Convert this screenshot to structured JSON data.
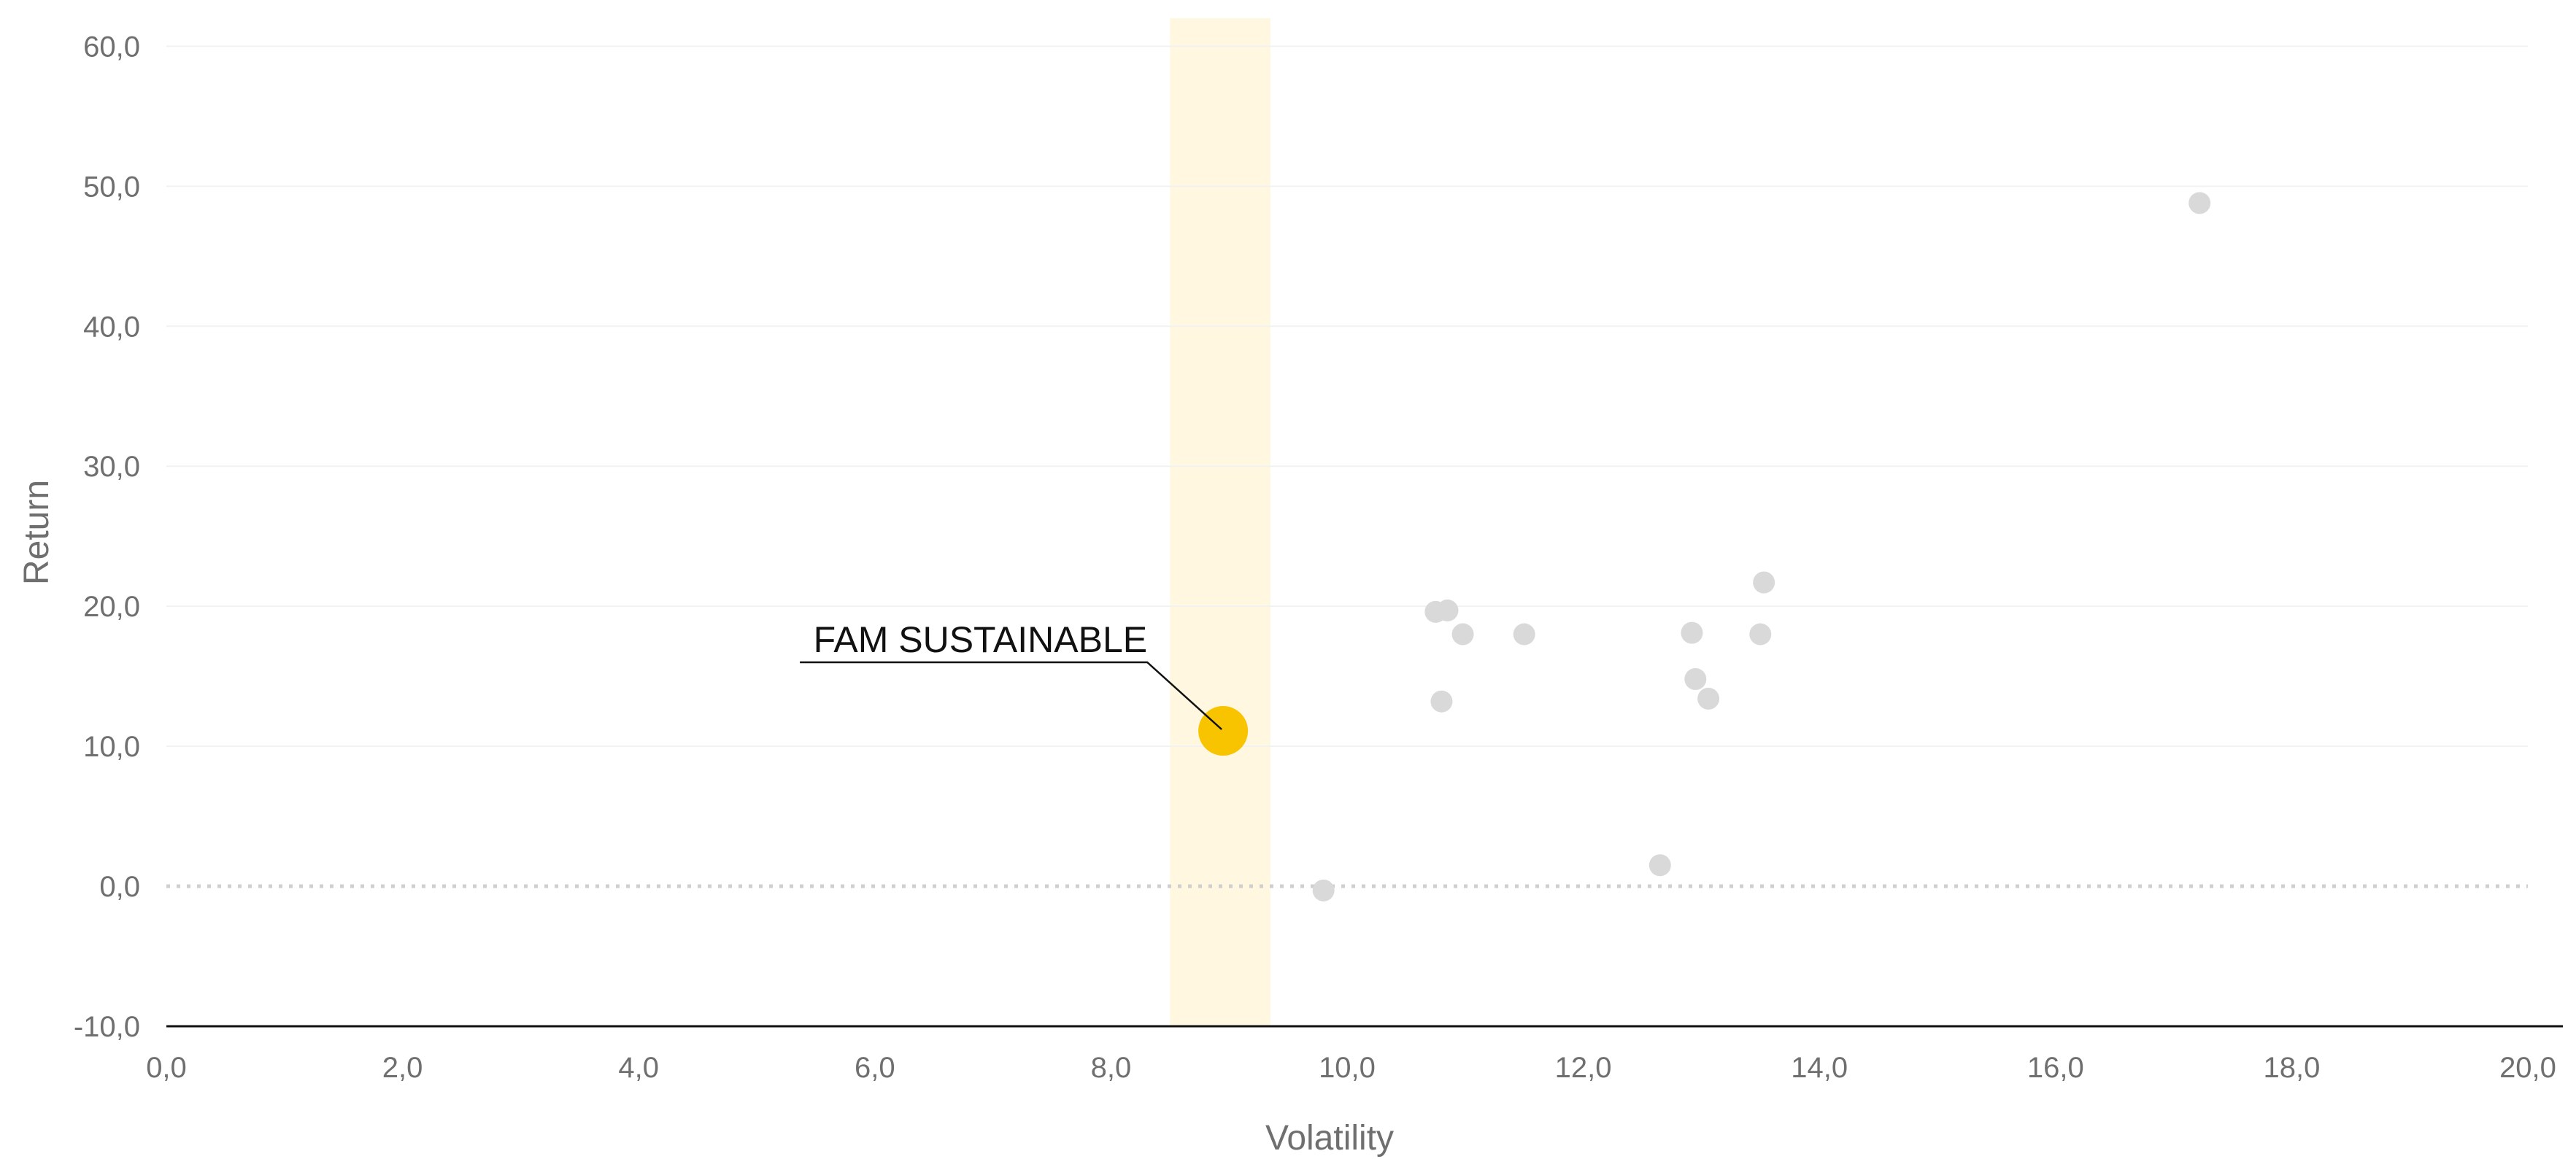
{
  "chart_data": {
    "type": "scatter",
    "title": "",
    "xlabel": "Volatility",
    "ylabel": "Return",
    "xlim": [
      0,
      20
    ],
    "ylim": [
      -10,
      62
    ],
    "x_ticks": [
      "0,0",
      "2,0",
      "4,0",
      "6,0",
      "8,0",
      "10,0",
      "12,0",
      "14,0",
      "16,0",
      "18,0",
      "20,0"
    ],
    "y_ticks": [
      "-10,0",
      "0,0",
      "10,0",
      "20,0",
      "30,0",
      "40,0",
      "50,0",
      "60,0"
    ],
    "grid": true,
    "highlight_band": {
      "x_from": 8.5,
      "x_to": 9.35,
      "color": "#fff7df"
    },
    "zero_line": {
      "y": 0,
      "style": "dotted",
      "color": "#cfcfcf"
    },
    "colors": {
      "peer_points": "#d9d9d9",
      "highlight_point": "#f8c400",
      "axis": "#111111",
      "grid": "#f2f2f2"
    },
    "series": [
      {
        "color": "#d9d9d9",
        "points": [
          {
            "x": 9.8,
            "y": -0.3
          },
          {
            "x": 10.75,
            "y": 19.6
          },
          {
            "x": 10.85,
            "y": 19.7
          },
          {
            "x": 10.8,
            "y": 13.2
          },
          {
            "x": 10.98,
            "y": 18.0
          },
          {
            "x": 11.5,
            "y": 18.0
          },
          {
            "x": 12.65,
            "y": 1.5
          },
          {
            "x": 12.92,
            "y": 18.1
          },
          {
            "x": 12.95,
            "y": 14.8
          },
          {
            "x": 13.06,
            "y": 13.4
          },
          {
            "x": 13.5,
            "y": 18.0
          },
          {
            "x": 13.53,
            "y": 21.7
          },
          {
            "x": 17.22,
            "y": 48.8
          }
        ]
      },
      {
        "color": "#f8c400",
        "points": [
          {
            "x": 8.95,
            "y": 11.1
          }
        ]
      }
    ],
    "annotations": [
      {
        "text": "FAM SUSTAINABLE",
        "x": 8.95,
        "y": 11.1
      }
    ]
  }
}
